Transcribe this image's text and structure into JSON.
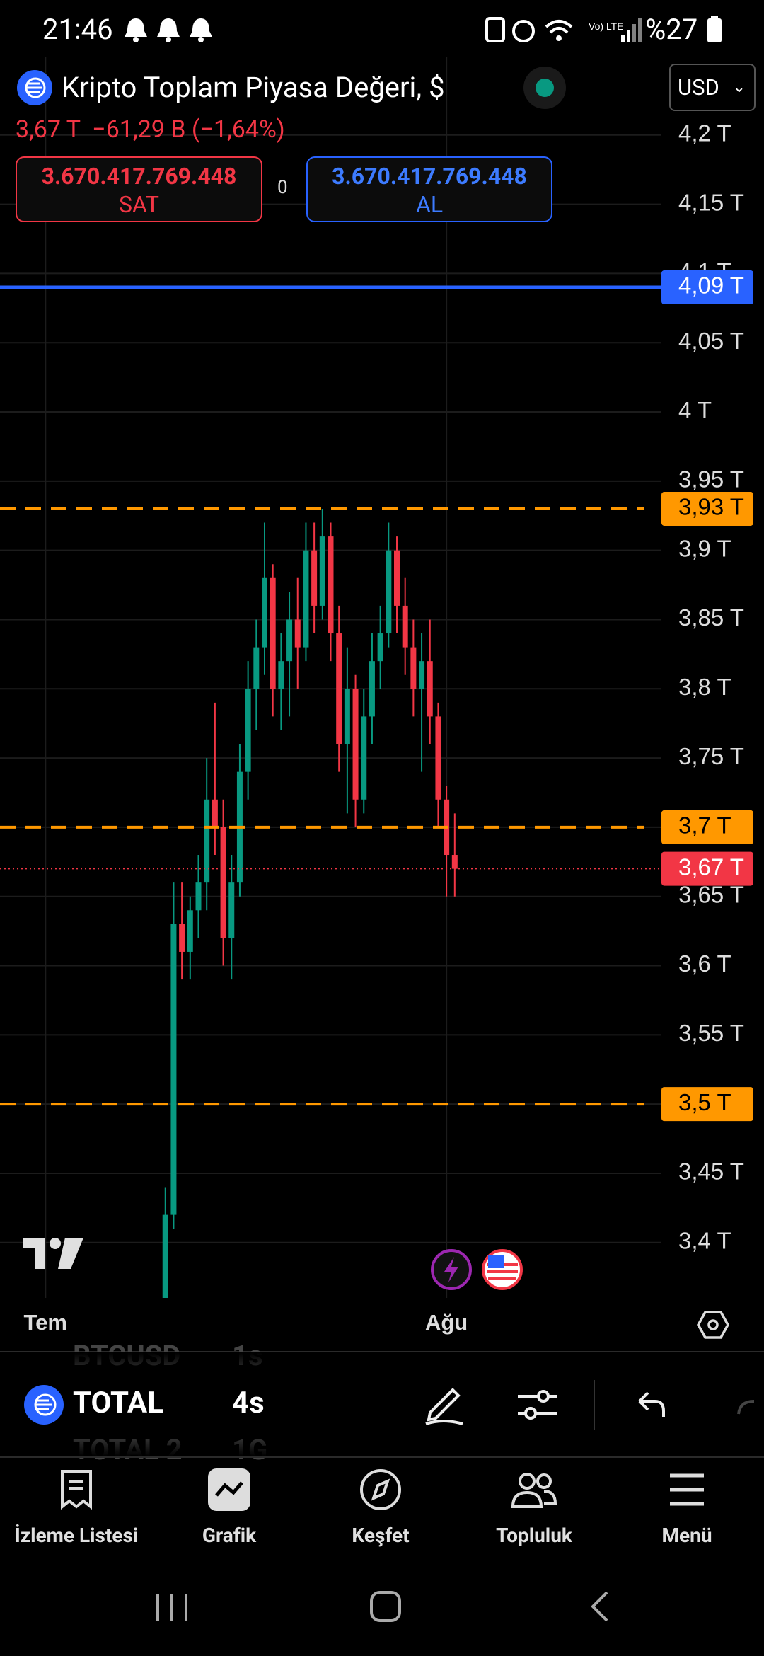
{
  "status_bar": {
    "time": "21:46",
    "battery": "%27"
  },
  "header": {
    "title": "Kripto Toplam Piyasa Değeri, $",
    "price": "3,67 T",
    "change": "−61,29 B (−1,64%)",
    "currency": "USD"
  },
  "trade": {
    "sell_price": "3.670.417.769.448",
    "sell_label": "SAT",
    "spread": "0",
    "buy_price": "3.670.417.769.448",
    "buy_label": "AL"
  },
  "chart_data": {
    "type": "candlestick",
    "x": [
      0,
      1,
      2,
      3,
      4,
      5,
      6,
      7,
      8,
      9,
      10,
      11,
      12,
      13,
      14,
      15,
      16,
      17,
      18,
      19,
      20,
      21,
      22,
      23,
      24,
      25,
      26,
      27,
      28,
      29,
      30,
      31,
      32,
      33,
      34,
      35
    ],
    "open": [
      3.36,
      3.42,
      3.63,
      3.61,
      3.64,
      3.66,
      3.72,
      3.7,
      3.62,
      3.66,
      3.74,
      3.8,
      3.83,
      3.88,
      3.8,
      3.82,
      3.85,
      3.83,
      3.9,
      3.86,
      3.91,
      3.84,
      3.76,
      3.8,
      3.72,
      3.78,
      3.82,
      3.84,
      3.9,
      3.86,
      3.83,
      3.8,
      3.82,
      3.78,
      3.72,
      3.68
    ],
    "high": [
      3.44,
      3.66,
      3.66,
      3.65,
      3.68,
      3.75,
      3.79,
      3.72,
      3.68,
      3.76,
      3.82,
      3.85,
      3.92,
      3.89,
      3.84,
      3.87,
      3.88,
      3.92,
      3.92,
      3.93,
      3.92,
      3.86,
      3.83,
      3.81,
      3.8,
      3.84,
      3.86,
      3.92,
      3.91,
      3.88,
      3.85,
      3.84,
      3.85,
      3.79,
      3.73,
      3.71
    ],
    "low": [
      3.36,
      3.41,
      3.59,
      3.59,
      3.62,
      3.64,
      3.68,
      3.6,
      3.59,
      3.65,
      3.72,
      3.77,
      3.81,
      3.78,
      3.77,
      3.78,
      3.8,
      3.82,
      3.84,
      3.85,
      3.82,
      3.74,
      3.71,
      3.7,
      3.71,
      3.76,
      3.8,
      3.83,
      3.84,
      3.81,
      3.78,
      3.74,
      3.76,
      3.7,
      3.65,
      3.65
    ],
    "close": [
      3.42,
      3.63,
      3.61,
      3.64,
      3.66,
      3.72,
      3.7,
      3.62,
      3.66,
      3.74,
      3.8,
      3.83,
      3.88,
      3.8,
      3.82,
      3.85,
      3.83,
      3.9,
      3.86,
      3.91,
      3.84,
      3.76,
      3.8,
      3.72,
      3.78,
      3.82,
      3.84,
      3.9,
      3.86,
      3.83,
      3.8,
      3.82,
      3.78,
      3.72,
      3.68,
      3.67
    ],
    "up_color": "#089981",
    "down_color": "#f23645",
    "xlim": [
      -20,
      60
    ],
    "xticks": [
      {
        "value": -14.5,
        "label": "Tem"
      },
      {
        "value": 34,
        "label": "Ağu"
      }
    ],
    "ylim": [
      3.36,
      4.25
    ],
    "yticks": [
      {
        "value": 4.2,
        "label": "4,2 T"
      },
      {
        "value": 4.15,
        "label": "4,15 T"
      },
      {
        "value": 4.1,
        "label": "4,1 T"
      },
      {
        "value": 4.05,
        "label": "4,05 T"
      },
      {
        "value": 4,
        "label": "4 T"
      },
      {
        "value": 3.95,
        "label": "3,95 T"
      },
      {
        "value": 3.9,
        "label": "3,9 T"
      },
      {
        "value": 3.85,
        "label": "3,85 T"
      },
      {
        "value": 3.8,
        "label": "3,8 T"
      },
      {
        "value": 3.75,
        "label": "3,75 T"
      },
      {
        "value": 3.7,
        "label": "3,7 T"
      },
      {
        "value": 3.65,
        "label": "3,65 T"
      },
      {
        "value": 3.6,
        "label": "3,6 T"
      },
      {
        "value": 3.55,
        "label": "3,55 T"
      },
      {
        "value": 3.5,
        "label": "3,5 T"
      },
      {
        "value": 3.45,
        "label": "3,45 T"
      },
      {
        "value": 3.4,
        "label": "3,4 T"
      }
    ],
    "grid": true,
    "levels": [
      {
        "value": 4.09,
        "label": "4,09 T",
        "color": "#2962ff",
        "style": "solid"
      },
      {
        "value": 3.93,
        "label": "3,93 T",
        "color": "#ff9800",
        "style": "dashed"
      },
      {
        "value": 3.7,
        "label": "3,7 T",
        "color": "#ff9800",
        "style": "dashed"
      },
      {
        "value": 3.5,
        "label": "3,5 T",
        "color": "#ff9800",
        "style": "dashed"
      },
      {
        "value": 3.67,
        "label": "3,67 T",
        "color": "#f23645",
        "style": "dotted"
      }
    ]
  },
  "symbols": [
    {
      "name": "BTCUSD",
      "interval": "1s"
    },
    {
      "name": "TOTAL",
      "interval": "4s"
    },
    {
      "name": "TOTAL 2",
      "interval": "1G"
    }
  ],
  "nav": [
    "İzleme Listesi",
    "Grafik",
    "Keşfet",
    "Topluluk",
    "Menü"
  ]
}
